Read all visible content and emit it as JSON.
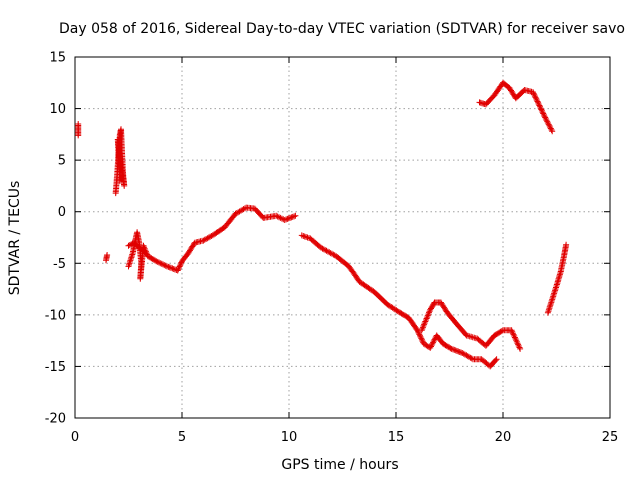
{
  "chart_data": {
    "type": "scatter",
    "title": "Day 058 of 2016, Sidereal Day-to-day VTEC variation (SDTVAR) for receiver savo",
    "xlabel": "GPS time / hours",
    "ylabel": "SDTVAR / TECUs",
    "xlim": [
      0,
      25
    ],
    "ylim": [
      -20,
      15
    ],
    "xticks": [
      0,
      5,
      10,
      15,
      20,
      25
    ],
    "yticks": [
      -20,
      -15,
      -10,
      -5,
      0,
      5,
      10,
      15
    ],
    "grid": true,
    "marker": "+",
    "color": "#e00000",
    "series": [
      {
        "name": "SDTVAR",
        "segments": [
          [
            [
              0.15,
              8.5
            ],
            [
              0.15,
              7.4
            ]
          ],
          [
            [
              1.9,
              1.8
            ],
            [
              1.95,
              3.0
            ],
            [
              2.0,
              4.5
            ],
            [
              2.05,
              6.0
            ],
            [
              2.1,
              7.5
            ],
            [
              2.15,
              8.0
            ],
            [
              2.2,
              5.5
            ],
            [
              2.25,
              3.5
            ],
            [
              2.3,
              2.5
            ],
            [
              2.0,
              7.0
            ],
            [
              2.05,
              5.0
            ],
            [
              2.1,
              3.0
            ]
          ],
          [
            [
              1.45,
              -4.7
            ],
            [
              1.5,
              -4.2
            ]
          ],
          [
            [
              2.5,
              -5.3
            ],
            [
              2.7,
              -4.0
            ],
            [
              2.9,
              -2.0
            ],
            [
              3.0,
              -3.0
            ],
            [
              3.1,
              -5.0
            ],
            [
              3.05,
              -6.5
            ],
            [
              3.2,
              -3.3
            ],
            [
              3.4,
              -4.3
            ],
            [
              3.8,
              -4.8
            ],
            [
              4.3,
              -5.3
            ],
            [
              4.8,
              -5.7
            ],
            [
              5.0,
              -4.8
            ],
            [
              5.3,
              -4.0
            ],
            [
              5.6,
              -3.0
            ],
            [
              6.0,
              -2.8
            ],
            [
              6.5,
              -2.2
            ],
            [
              7.0,
              -1.5
            ],
            [
              7.5,
              -0.2
            ],
            [
              8.0,
              0.4
            ],
            [
              8.4,
              0.3
            ],
            [
              8.8,
              -0.6
            ],
            [
              9.4,
              -0.4
            ],
            [
              9.8,
              -0.8
            ],
            [
              10.3,
              -0.4
            ]
          ],
          [
            [
              2.5,
              -3.3
            ],
            [
              2.75,
              -3.0
            ],
            [
              3.0,
              -3.5
            ],
            [
              3.3,
              -4.0
            ]
          ],
          [
            [
              10.6,
              -2.3
            ],
            [
              11.0,
              -2.6
            ],
            [
              11.5,
              -3.5
            ],
            [
              12.2,
              -4.3
            ],
            [
              12.8,
              -5.3
            ],
            [
              13.3,
              -6.8
            ],
            [
              14.0,
              -7.8
            ],
            [
              14.6,
              -9.0
            ],
            [
              15.2,
              -9.8
            ],
            [
              15.6,
              -10.3
            ],
            [
              16.0,
              -11.5
            ],
            [
              16.3,
              -12.8
            ],
            [
              16.6,
              -13.2
            ],
            [
              16.9,
              -12.0
            ],
            [
              17.2,
              -12.8
            ],
            [
              17.6,
              -13.3
            ],
            [
              18.1,
              -13.7
            ],
            [
              18.6,
              -14.3
            ],
            [
              19.0,
              -14.3
            ],
            [
              19.4,
              -15.0
            ],
            [
              19.7,
              -14.3
            ]
          ],
          [
            [
              16.2,
              -11.5
            ],
            [
              16.6,
              -9.5
            ],
            [
              16.8,
              -8.8
            ],
            [
              17.1,
              -8.8
            ],
            [
              17.4,
              -9.8
            ],
            [
              17.8,
              -10.8
            ],
            [
              18.3,
              -12.0
            ],
            [
              18.8,
              -12.3
            ],
            [
              19.2,
              -13.0
            ],
            [
              19.6,
              -12.0
            ],
            [
              20.0,
              -11.5
            ],
            [
              20.4,
              -11.5
            ],
            [
              20.8,
              -13.3
            ]
          ],
          [
            [
              18.9,
              10.6
            ],
            [
              19.2,
              10.4
            ],
            [
              19.6,
              11.3
            ],
            [
              20.0,
              12.5
            ],
            [
              20.3,
              12.0
            ],
            [
              20.6,
              11.0
            ],
            [
              21.0,
              11.8
            ],
            [
              21.4,
              11.6
            ],
            [
              21.7,
              10.3
            ],
            [
              22.0,
              9.0
            ],
            [
              22.3,
              7.8
            ]
          ],
          [
            [
              22.1,
              -9.8
            ],
            [
              22.3,
              -8.5
            ],
            [
              22.5,
              -7.2
            ],
            [
              22.7,
              -5.8
            ],
            [
              22.85,
              -4.3
            ],
            [
              22.95,
              -3.2
            ]
          ]
        ]
      }
    ]
  }
}
